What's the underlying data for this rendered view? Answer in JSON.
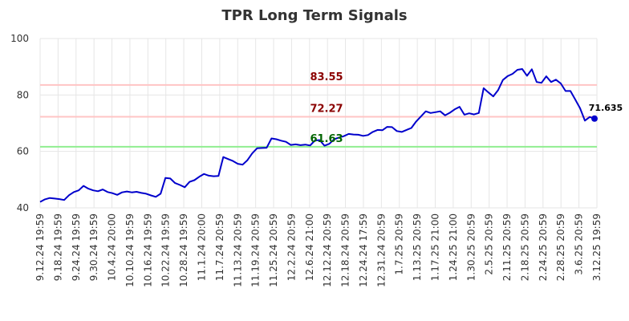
{
  "chart_data": {
    "type": "line",
    "title": "TPR Long Term Signals",
    "xlabel": "",
    "ylabel": "",
    "ylim": [
      40,
      100
    ],
    "yticks": [
      "40",
      "60",
      "80",
      "100"
    ],
    "x_tick_labels": [
      "9.12.24 19:59",
      "9.18.24 19:59",
      "9.24.24 19:59",
      "9.30.24 19:59",
      "10.4.24 20:00",
      "10.10.24 19:59",
      "10.16.24 19:59",
      "10.22.24 19:59",
      "10.28.24 19:59",
      "11.1.24 20:00",
      "11.7.24 20:59",
      "11.13.24 20:59",
      "11.19.24 20:59",
      "11.25.24 20:59",
      "12.2.24 20:59",
      "12.6.24 21:00",
      "12.12.24 20:59",
      "12.18.24 20:59",
      "12.24.24 17:59",
      "12.31.24 20:59",
      "1.7.25 20:59",
      "1.13.25 20:59",
      "1.17.25 21:00",
      "1.24.25 21:00",
      "1.30.25 20:59",
      "2.5.25 20:59",
      "2.11.25 20:59",
      "2.18.25 20:59",
      "2.24.25 20:59",
      "2.28.25 20:59",
      "3.6.25 20:59",
      "3.12.25 19:59"
    ],
    "grid": true,
    "series": [
      {
        "color": "#0000cc",
        "values": [
          42.1,
          43.0,
          43.5,
          43.3,
          43.1,
          42.8,
          44.5,
          45.6,
          46.2,
          47.8,
          46.8,
          46.2,
          45.9,
          46.5,
          45.6,
          45.2,
          44.6,
          45.5,
          45.8,
          45.5,
          45.7,
          45.3,
          45.0,
          44.4,
          43.9,
          45.0,
          50.6,
          50.4,
          48.8,
          48.1,
          47.3,
          49.2,
          49.8,
          51.0,
          52.0,
          51.4,
          51.2,
          51.3,
          58.0,
          57.3,
          56.6,
          55.6,
          55.3,
          56.9,
          59.3,
          61.1,
          61.2,
          61.3,
          64.6,
          64.3,
          63.8,
          63.4,
          62.3,
          62.5,
          62.2,
          62.4,
          62.1,
          63.9,
          64.0,
          62.0,
          62.7,
          64.3,
          64.9,
          65.4,
          66.2,
          66.0,
          65.9,
          65.5,
          65.8,
          66.9,
          67.6,
          67.5,
          68.7,
          68.6,
          67.2,
          66.9,
          67.6,
          68.3,
          70.6,
          72.4,
          74.2,
          73.6,
          73.9,
          74.2,
          72.8,
          73.7,
          74.9,
          75.8,
          73.0,
          73.5,
          73.1,
          73.6,
          82.4,
          80.9,
          79.5,
          81.7,
          85.3,
          86.7,
          87.5,
          88.9,
          89.2,
          86.8,
          89.1,
          84.6,
          84.3,
          86.6,
          84.6,
          85.4,
          84.1,
          81.4,
          81.4,
          78.4,
          75.3,
          70.9,
          72.2,
          71.635
        ]
      }
    ],
    "levels": [
      {
        "label": "83.55",
        "value": 83.55,
        "line_color": "#ffc4c4",
        "text_color": "#8b0000"
      },
      {
        "label": "72.27",
        "value": 72.27,
        "line_color": "#ffc4c4",
        "text_color": "#8b0000"
      },
      {
        "label": "61.63",
        "value": 61.63,
        "line_color": "#90ee90",
        "text_color": "#006400"
      }
    ],
    "last_value_label": "71.635",
    "last_value": 71.635
  }
}
